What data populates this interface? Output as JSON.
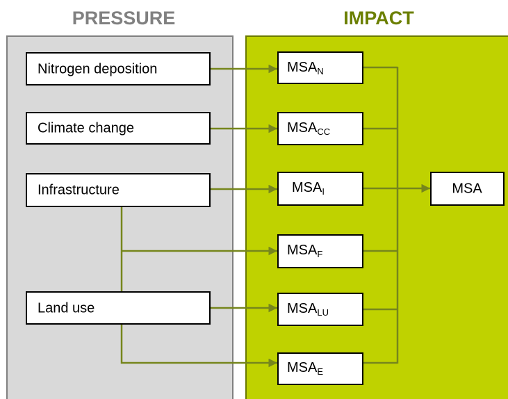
{
  "headers": {
    "pressure": "PRESSURE",
    "impact": "IMPACT"
  },
  "pressures": [
    "Nitrogen deposition",
    "Climate change",
    "Infrastructure",
    "Land use"
  ],
  "impacts": [
    {
      "label": "MSA",
      "subscript": "N"
    },
    {
      "label": "MSA",
      "subscript": "CC"
    },
    {
      "label": "MSA",
      "subscript": "I"
    },
    {
      "label": "MSA",
      "subscript": "F"
    },
    {
      "label": "MSA",
      "subscript": "LU"
    },
    {
      "label": "MSA",
      "subscript": "E"
    }
  ],
  "output": "MSA"
}
